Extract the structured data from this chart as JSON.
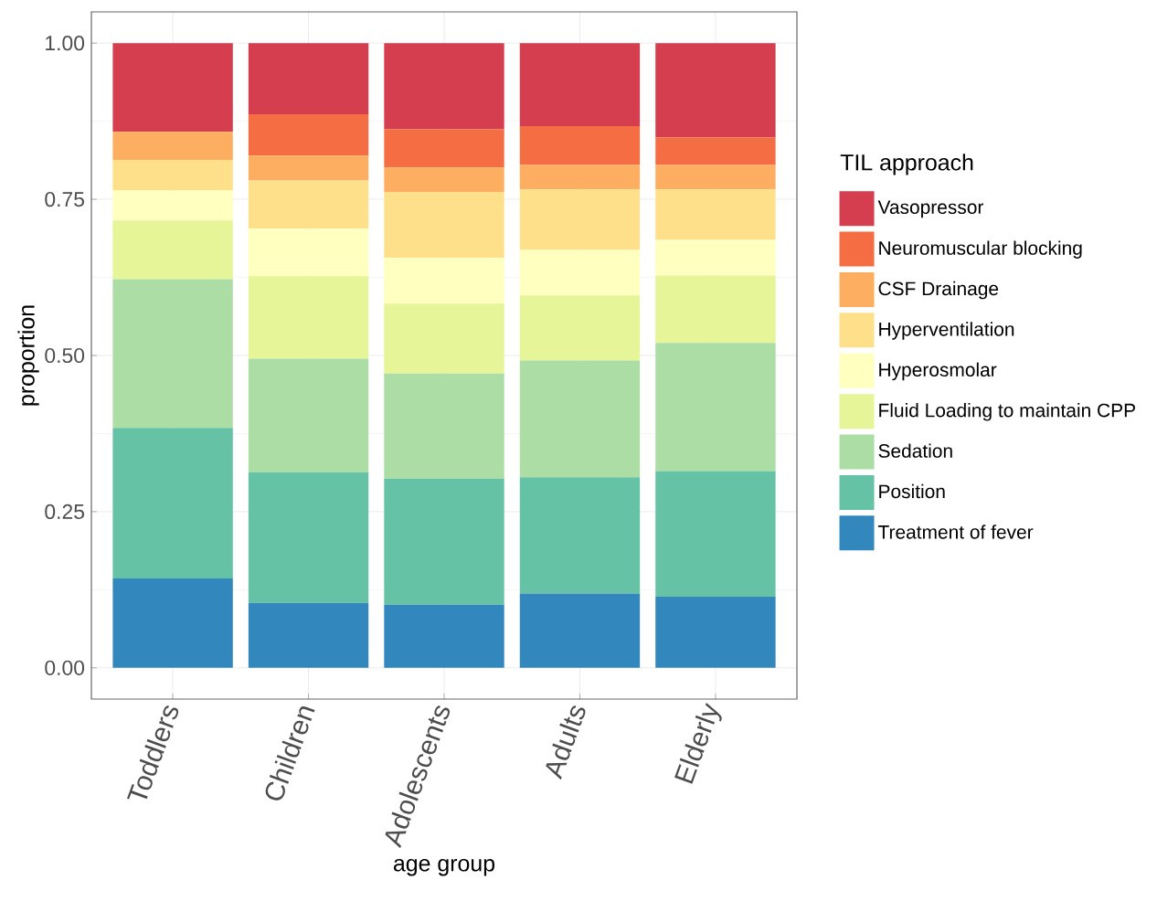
{
  "chart_data": {
    "type": "bar",
    "stacked": true,
    "xlabel": "age group",
    "ylabel": "proportion",
    "legend_title": "TIL approach",
    "categories": [
      "Toddlers",
      "Children",
      "Adolescents",
      "Adults",
      "Elderly"
    ],
    "ylim": [
      -0.05,
      1.05
    ],
    "yticks": [
      {
        "value": 0,
        "label": "0.00"
      },
      {
        "value": 0.25,
        "label": "0.25"
      },
      {
        "value": 0.5,
        "label": "0.50"
      },
      {
        "value": 0.75,
        "label": "0.75"
      },
      {
        "value": 1,
        "label": "1.00"
      }
    ],
    "grid": true,
    "legend": "right",
    "series": [
      {
        "name": "Treatment of fever",
        "color": "#3288bd",
        "values": [
          0.143,
          0.104,
          0.101,
          0.119,
          0.114
        ]
      },
      {
        "name": "Position",
        "color": "#66c2a5",
        "values": [
          0.241,
          0.209,
          0.202,
          0.186,
          0.201
        ]
      },
      {
        "name": "Sedation",
        "color": "#abdda4",
        "values": [
          0.238,
          0.182,
          0.168,
          0.187,
          0.205
        ]
      },
      {
        "name": "Fluid Loading to maintain CPP",
        "color": "#e6f598",
        "values": [
          0.094,
          0.132,
          0.112,
          0.104,
          0.108
        ]
      },
      {
        "name": "Hyperosmolar",
        "color": "#ffffbf",
        "values": [
          0.048,
          0.076,
          0.073,
          0.073,
          0.057
        ]
      },
      {
        "name": "Hyperventilation",
        "color": "#fee08b",
        "values": [
          0.049,
          0.077,
          0.105,
          0.097,
          0.081
        ]
      },
      {
        "name": "CSF Drainage",
        "color": "#fdae61",
        "values": [
          0.045,
          0.04,
          0.04,
          0.039,
          0.039
        ]
      },
      {
        "name": "Neuromuscular blocking",
        "color": "#f46d43",
        "values": [
          0,
          0.066,
          0.061,
          0.062,
          0.044
        ]
      },
      {
        "name": "Vasopressor",
        "color": "#d53e4f",
        "values": [
          0.142,
          0.114,
          0.138,
          0.133,
          0.151
        ]
      }
    ]
  }
}
